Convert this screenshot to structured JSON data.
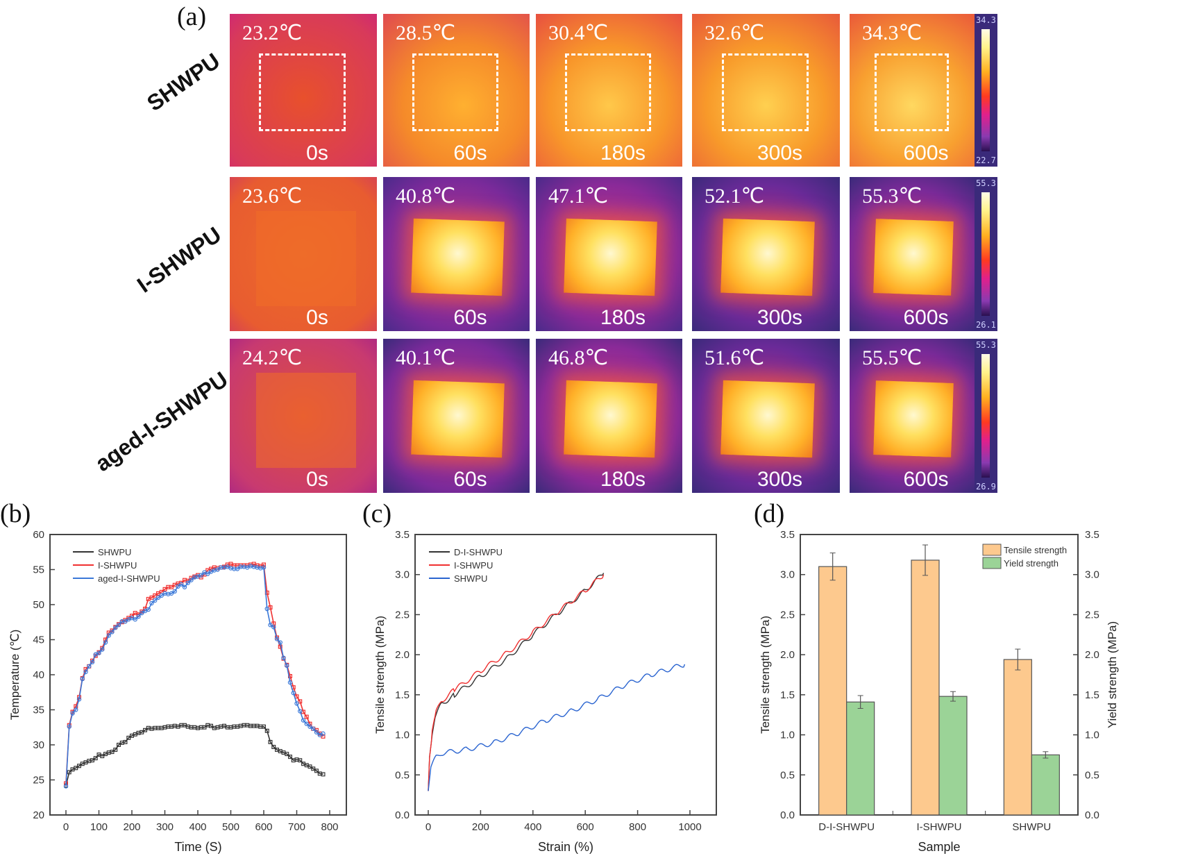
{
  "panel_labels": {
    "a": "(a)",
    "b": "(b)",
    "c": "(c)",
    "d": "(d)"
  },
  "thermal": {
    "rows": [
      {
        "label": "SHWPU",
        "colorbar_max": "34.3",
        "colorbar_min": "22.7",
        "cells": [
          {
            "temp": "23.2℃",
            "time": "0s"
          },
          {
            "temp": "28.5℃",
            "time": "60s"
          },
          {
            "temp": "30.4℃",
            "time": "180s"
          },
          {
            "temp": "32.6℃",
            "time": "300s"
          },
          {
            "temp": "34.3℃",
            "time": "600s"
          }
        ]
      },
      {
        "label": "I-SHWPU",
        "colorbar_max": "55.3",
        "colorbar_min": "26.1",
        "cells": [
          {
            "temp": "23.6℃",
            "time": "0s"
          },
          {
            "temp": "40.8℃",
            "time": "60s"
          },
          {
            "temp": "47.1℃",
            "time": "180s"
          },
          {
            "temp": "52.1℃",
            "time": "300s"
          },
          {
            "temp": "55.3℃",
            "time": "600s"
          }
        ]
      },
      {
        "label": "aged-I-SHWPU",
        "colorbar_max": "55.3",
        "colorbar_min": "26.9",
        "cells": [
          {
            "temp": "24.2℃",
            "time": "0s"
          },
          {
            "temp": "40.1℃",
            "time": "60s"
          },
          {
            "temp": "46.8℃",
            "time": "180s"
          },
          {
            "temp": "51.6℃",
            "time": "300s"
          },
          {
            "temp": "55.5℃",
            "time": "600s"
          }
        ]
      }
    ]
  },
  "chart_data": [
    {
      "id": "b",
      "type": "line",
      "title": "",
      "xlabel": "Time (S)",
      "ylabel": "Temperature (℃)",
      "xlim": [
        0,
        800
      ],
      "ylim": [
        20,
        60
      ],
      "xticks": [
        0,
        100,
        200,
        300,
        400,
        500,
        600,
        700,
        800
      ],
      "yticks": [
        20,
        25,
        30,
        35,
        40,
        45,
        50,
        55,
        60
      ],
      "legend_position": "top-left",
      "x_step": 10,
      "series": [
        {
          "name": "SHWPU",
          "color": "#333333",
          "marker": "square",
          "values": [
            24.2,
            26.1,
            26.5,
            26.7,
            27.0,
            27.3,
            27.5,
            27.7,
            27.8,
            28.1,
            28.6,
            28.4,
            28.7,
            28.9,
            29.0,
            29.3,
            30.0,
            30.3,
            30.4,
            31.0,
            31.3,
            31.5,
            31.7,
            31.8,
            32.1,
            32.4,
            32.3,
            32.4,
            32.4,
            32.4,
            32.5,
            32.6,
            32.6,
            32.7,
            32.6,
            32.8,
            32.8,
            32.6,
            32.5,
            32.5,
            32.4,
            32.5,
            32.5,
            32.8,
            32.7,
            32.4,
            32.5,
            32.6,
            32.7,
            32.5,
            32.5,
            32.6,
            32.6,
            32.7,
            32.8,
            32.8,
            32.7,
            32.7,
            32.7,
            32.6,
            32.6,
            32.0,
            30.4,
            29.7,
            29.3,
            29.1,
            28.9,
            28.7,
            28.3,
            27.8,
            27.9,
            27.8,
            27.3,
            27.1,
            26.9,
            26.6,
            26.3,
            25.9,
            25.8
          ]
        },
        {
          "name": "I-SHWPU",
          "color": "#f03030",
          "marker": "square",
          "values": [
            24.5,
            32.8,
            34.7,
            35.5,
            36.8,
            39.5,
            40.8,
            41.2,
            42.0,
            42.7,
            43.2,
            43.8,
            45.0,
            46.0,
            46.3,
            46.8,
            47.2,
            47.5,
            47.8,
            48.1,
            48.4,
            48.8,
            48.6,
            49.0,
            49.4,
            50.8,
            51.0,
            51.3,
            51.6,
            51.8,
            52.2,
            52.5,
            52.5,
            52.8,
            53.0,
            53.1,
            53.5,
            53.4,
            53.8,
            54.0,
            54.2,
            53.9,
            54.3,
            54.9,
            55.1,
            55.3,
            55.2,
            55.3,
            55.4,
            55.7,
            55.8,
            55.6,
            55.6,
            55.6,
            55.6,
            55.6,
            55.7,
            55.8,
            55.6,
            55.5,
            55.7,
            51.7,
            49.6,
            47.3,
            45.3,
            44.0,
            42.3,
            41.4,
            39.8,
            38.2,
            36.9,
            36.2,
            34.7,
            34.0,
            33.0,
            32.3,
            32.1,
            31.6,
            31.2
          ]
        },
        {
          "name": "aged-I-SHWPU",
          "color": "#3a78d8",
          "marker": "circle",
          "values": [
            24.1,
            32.6,
            34.5,
            35.0,
            36.5,
            39.4,
            40.4,
            41.2,
            41.8,
            42.9,
            43.1,
            43.6,
            44.6,
            45.6,
            46.1,
            46.7,
            47.1,
            47.6,
            47.6,
            47.9,
            48.1,
            47.9,
            48.3,
            48.8,
            49.1,
            49.3,
            50.2,
            50.6,
            51.0,
            51.3,
            51.6,
            51.5,
            51.6,
            51.9,
            52.6,
            52.9,
            52.5,
            53.1,
            53.5,
            53.9,
            54.0,
            54.2,
            54.6,
            54.4,
            54.7,
            54.9,
            55.0,
            55.3,
            55.3,
            55.4,
            55.2,
            55.1,
            55.1,
            55.4,
            55.4,
            55.3,
            55.5,
            55.4,
            55.3,
            55.2,
            55.3,
            49.4,
            47.1,
            46.8,
            45.1,
            44.6,
            42.4,
            41.3,
            38.9,
            37.4,
            35.9,
            34.8,
            33.5,
            33.0,
            32.6,
            32.3,
            31.8,
            31.4,
            31.6
          ]
        }
      ]
    },
    {
      "id": "c",
      "type": "line",
      "title": "",
      "xlabel": "Strain (%)",
      "ylabel": "Tensile strength (MPa)",
      "xlim": [
        0,
        1000
      ],
      "ylim": [
        0,
        3.5
      ],
      "xticks": [
        0,
        200,
        400,
        600,
        800,
        1000
      ],
      "yticks": [
        "0.0",
        "0.5",
        "1.0",
        "1.5",
        "2.0",
        "2.5",
        "3.0",
        "3.5"
      ],
      "legend_position": "top-left",
      "series": [
        {
          "name": "D-I-SHWPU",
          "color": "#333333",
          "points": [
            [
              0,
              0.3
            ],
            [
              5,
              0.7
            ],
            [
              15,
              1.0
            ],
            [
              30,
              1.25
            ],
            [
              50,
              1.38
            ],
            [
              100,
              1.5
            ],
            [
              200,
              1.73
            ],
            [
              300,
              1.95
            ],
            [
              400,
              2.25
            ],
            [
              500,
              2.53
            ],
            [
              600,
              2.8
            ],
            [
              670,
              3.02
            ]
          ]
        },
        {
          "name": "I-SHWPU",
          "color": "#f03030",
          "points": [
            [
              0,
              0.3
            ],
            [
              5,
              0.72
            ],
            [
              15,
              1.03
            ],
            [
              30,
              1.28
            ],
            [
              50,
              1.42
            ],
            [
              100,
              1.56
            ],
            [
              200,
              1.8
            ],
            [
              300,
              2.02
            ],
            [
              400,
              2.28
            ],
            [
              500,
              2.55
            ],
            [
              600,
              2.8
            ],
            [
              670,
              3.0
            ]
          ]
        },
        {
          "name": "SHWPU",
          "color": "#2a64d0",
          "points": [
            [
              0,
              0.3
            ],
            [
              10,
              0.6
            ],
            [
              30,
              0.72
            ],
            [
              50,
              0.77
            ],
            [
              150,
              0.82
            ],
            [
              250,
              0.9
            ],
            [
              350,
              1.03
            ],
            [
              450,
              1.18
            ],
            [
              550,
              1.3
            ],
            [
              650,
              1.45
            ],
            [
              750,
              1.62
            ],
            [
              850,
              1.75
            ],
            [
              980,
              1.88
            ]
          ]
        }
      ]
    },
    {
      "id": "d",
      "type": "bar",
      "title": "",
      "xlabel": "Sample",
      "ylabel": "Tensile strength (MPa)",
      "ylabel_right": "Yield strength (MPa)",
      "ylim": [
        0,
        3.5
      ],
      "yticks": [
        "0.0",
        "0.5",
        "1.0",
        "1.5",
        "2.0",
        "2.5",
        "3.0",
        "3.5"
      ],
      "categories": [
        "D-I-SHWPU",
        "I-SHWPU",
        "SHWPU"
      ],
      "legend_position": "top-right",
      "series": [
        {
          "name": "Tensile strength",
          "color": "#fdc98e",
          "values": [
            3.1,
            3.18,
            1.94
          ],
          "errors": [
            0.17,
            0.19,
            0.13
          ]
        },
        {
          "name": "Yield strength",
          "color": "#9bd397",
          "values": [
            1.41,
            1.48,
            0.75
          ],
          "errors": [
            0.08,
            0.06,
            0.04
          ]
        }
      ]
    }
  ]
}
